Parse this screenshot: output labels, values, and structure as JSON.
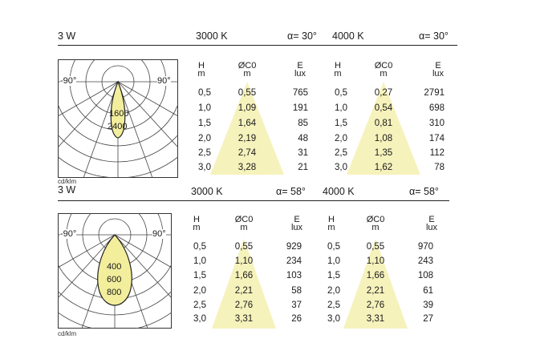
{
  "blocks": [
    {
      "power": "3 W",
      "unit_label": "cd/klm",
      "polar": {
        "left_angle": "-90°",
        "right_angle": "90°",
        "ring_labels": [
          "1600",
          "2400"
        ]
      },
      "groups": [
        {
          "cct": "3000 K",
          "beam": "α= 30°",
          "headers": {
            "h": "H",
            "h_unit": "m",
            "d": "ØC0",
            "d_unit": "m",
            "e": "E",
            "e_unit": "lux"
          },
          "rows": [
            {
              "h": "0,5",
              "d": "0,55",
              "e": "765"
            },
            {
              "h": "1,0",
              "d": "1,09",
              "e": "191"
            },
            {
              "h": "1,5",
              "d": "1,64",
              "e": "85"
            },
            {
              "h": "2,0",
              "d": "2,19",
              "e": "48"
            },
            {
              "h": "2,5",
              "d": "2,74",
              "e": "31"
            },
            {
              "h": "3,0",
              "d": "3,28",
              "e": "21"
            }
          ]
        },
        {
          "cct": "4000 K",
          "beam": "α= 30°",
          "headers": {
            "h": "H",
            "h_unit": "m",
            "d": "ØC0",
            "d_unit": "m",
            "e": "E",
            "e_unit": "lux"
          },
          "rows": [
            {
              "h": "0,5",
              "d": "0,27",
              "e": "2791"
            },
            {
              "h": "1,0",
              "d": "0,54",
              "e": "698"
            },
            {
              "h": "1,5",
              "d": "0,81",
              "e": "310"
            },
            {
              "h": "2,0",
              "d": "1,08",
              "e": "174"
            },
            {
              "h": "2,5",
              "d": "1,35",
              "e": "112"
            },
            {
              "h": "3,0",
              "d": "1,62",
              "e": "78"
            }
          ]
        }
      ]
    },
    {
      "power": "3 W",
      "unit_label": "cd/klm",
      "polar": {
        "left_angle": "-90°",
        "right_angle": "90°",
        "ring_labels": [
          "400",
          "600",
          "800"
        ]
      },
      "groups": [
        {
          "cct": "3000 K",
          "beam": "α= 58°",
          "headers": {
            "h": "H",
            "h_unit": "m",
            "d": "ØC0",
            "d_unit": "m",
            "e": "E",
            "e_unit": "lux"
          },
          "rows": [
            {
              "h": "0,5",
              "d": "0,55",
              "e": "929"
            },
            {
              "h": "1,0",
              "d": "1,10",
              "e": "234"
            },
            {
              "h": "1,5",
              "d": "1,66",
              "e": "103"
            },
            {
              "h": "2,0",
              "d": "2,21",
              "e": "58"
            },
            {
              "h": "2,5",
              "d": "2,76",
              "e": "37"
            },
            {
              "h": "3,0",
              "d": "3,31",
              "e": "26"
            }
          ]
        },
        {
          "cct": "4000 K",
          "beam": "α= 58°",
          "headers": {
            "h": "H",
            "h_unit": "m",
            "d": "ØC0",
            "d_unit": "m",
            "e": "E",
            "e_unit": "lux"
          },
          "rows": [
            {
              "h": "0,5",
              "d": "0,55",
              "e": "970"
            },
            {
              "h": "1,0",
              "d": "1,10",
              "e": "243"
            },
            {
              "h": "1,5",
              "d": "1,66",
              "e": "108"
            },
            {
              "h": "2,0",
              "d": "2,21",
              "e": "61"
            },
            {
              "h": "2,5",
              "d": "2,76",
              "e": "39"
            },
            {
              "h": "3,0",
              "d": "3,31",
              "e": "27"
            }
          ]
        }
      ]
    }
  ],
  "colors": {
    "cone_fill": "#f6f2bc",
    "lobe_fill": "#f3ee9c",
    "grid": "#333333"
  }
}
